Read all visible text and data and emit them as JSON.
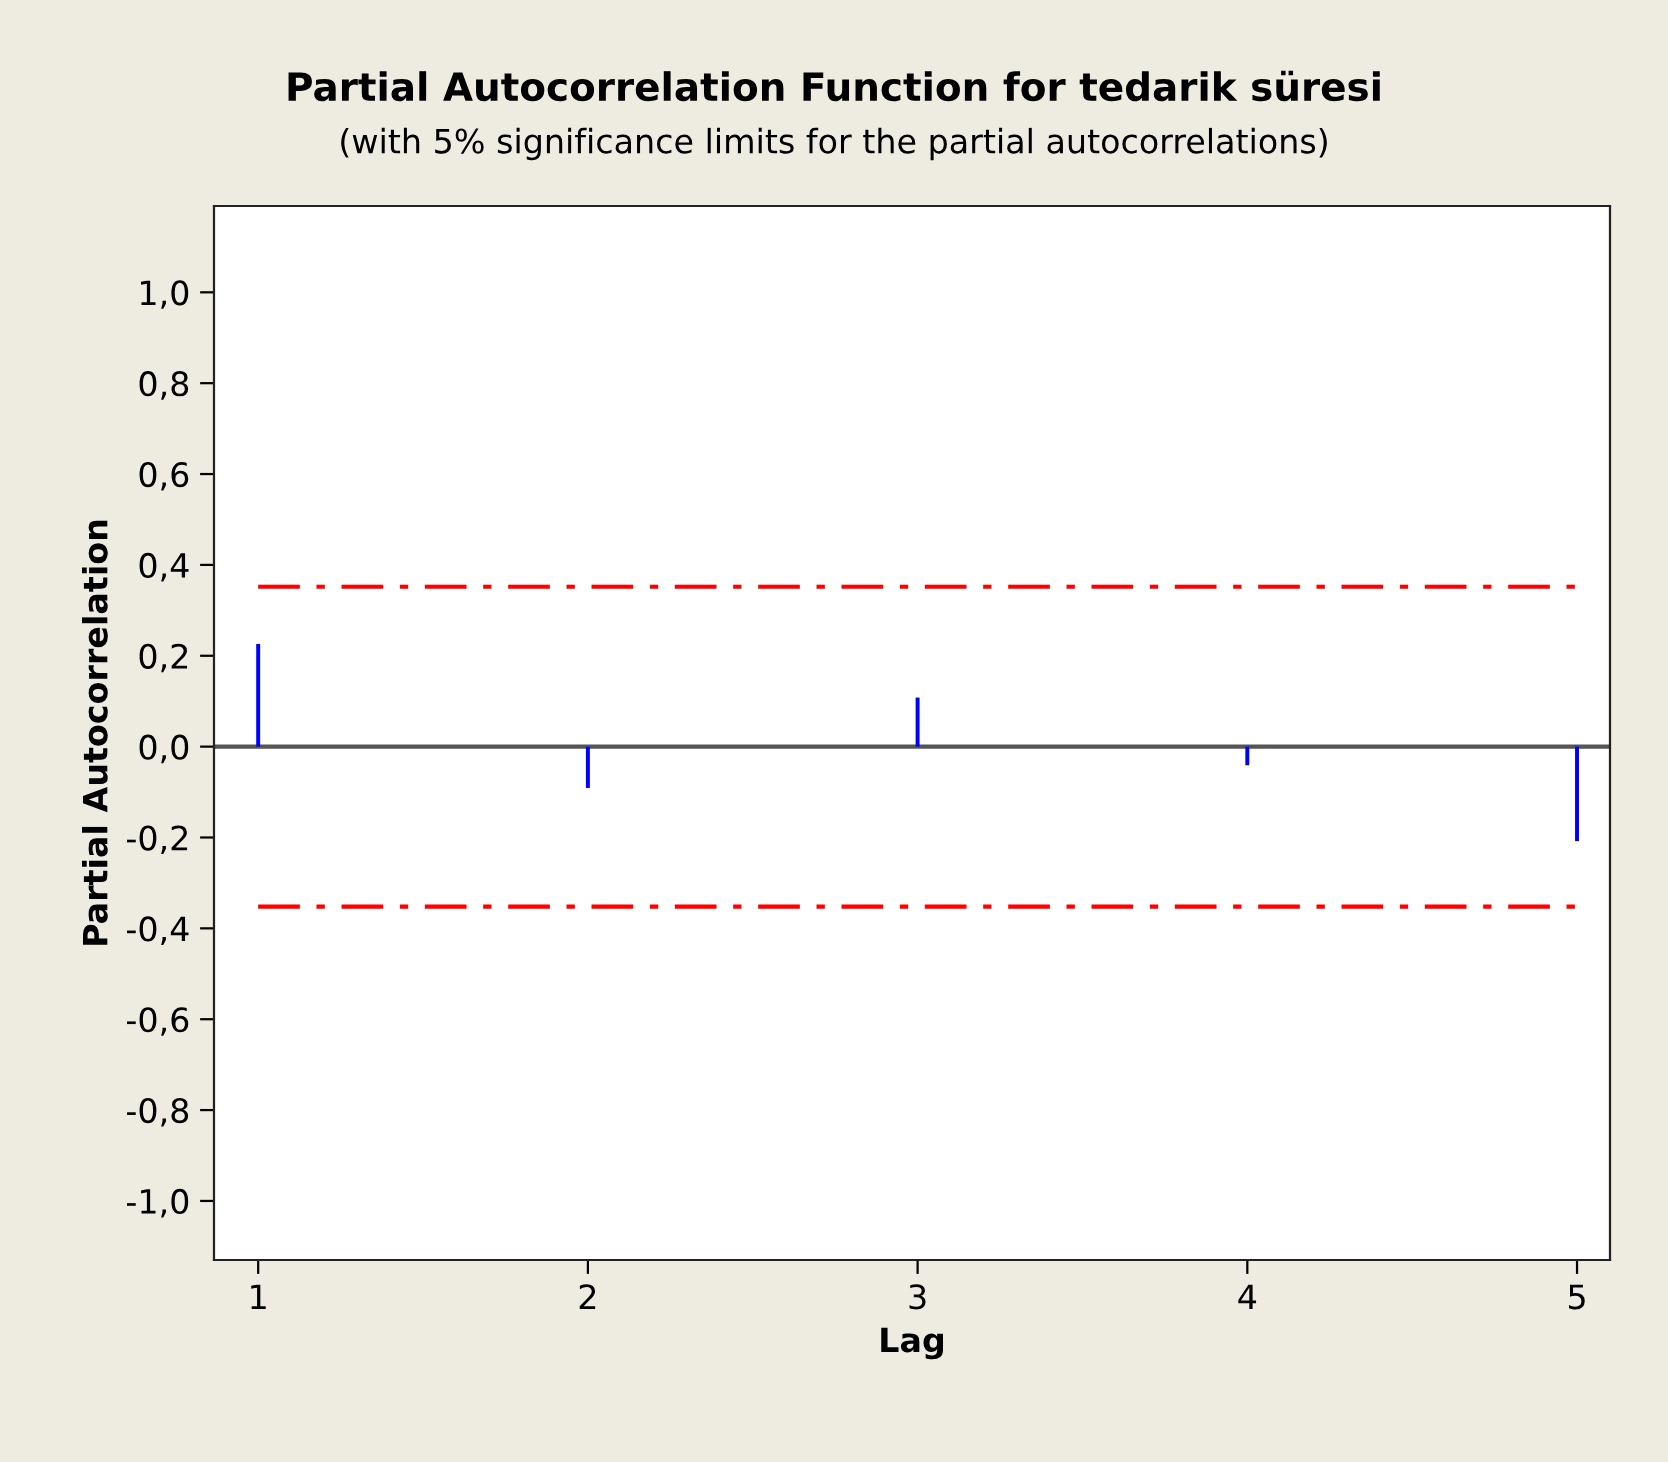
{
  "chart_data": {
    "type": "bar",
    "title": "Partial Autocorrelation Function for tedarik süresi",
    "subtitle": "(with 5% significance limits for the partial autocorrelations)",
    "xlabel": "Lag",
    "ylabel": "Partial Autocorrelation",
    "x": [
      1,
      2,
      3,
      4,
      5
    ],
    "values": [
      0.226,
      -0.091,
      0.108,
      -0.041,
      -0.208
    ],
    "color": "#0000ff",
    "xlim": [
      0.866,
      5.1
    ],
    "xticks": [
      1,
      2,
      3,
      4,
      5
    ],
    "ylim": [
      -1.13,
      1.19
    ],
    "yticks": [
      {
        "value": -1.0,
        "label": "-1,0"
      },
      {
        "value": -0.8,
        "label": "-0,8"
      },
      {
        "value": -0.6,
        "label": "-0,6"
      },
      {
        "value": -0.4,
        "label": "-0,4"
      },
      {
        "value": -0.2,
        "label": "-0,2"
      },
      {
        "value": 0.0,
        "label": "0,0"
      },
      {
        "value": 0.2,
        "label": "0,2"
      },
      {
        "value": 0.4,
        "label": "0,4"
      },
      {
        "value": 0.6,
        "label": "0,6"
      },
      {
        "value": 0.8,
        "label": "0,8"
      },
      {
        "value": 1.0,
        "label": "1,0"
      }
    ],
    "ref_lines": [
      {
        "axis": "y",
        "value": 0.352,
        "color": "#ff0000",
        "line_style": "dashdot"
      },
      {
        "axis": "y",
        "value": -0.352,
        "color": "#ff0000",
        "line_style": "dashdot"
      },
      {
        "axis": "y",
        "value": 0,
        "color": "#555555",
        "line_style": "solid"
      }
    ],
    "grid": false
  }
}
